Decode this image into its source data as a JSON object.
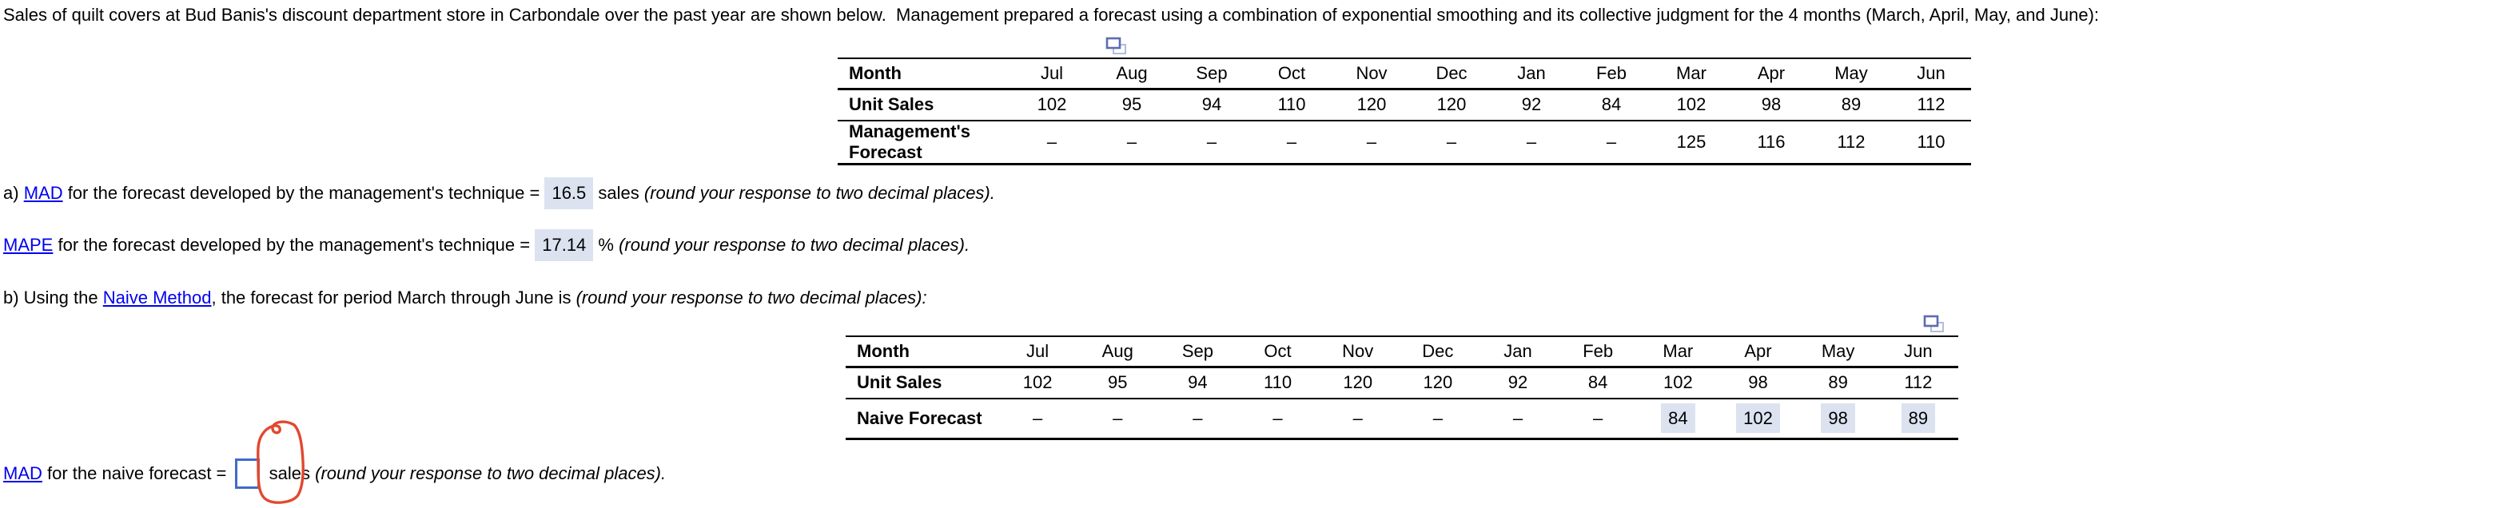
{
  "colors": {
    "highlight": "#dce2f0",
    "link": "#0000ee",
    "input_border": "#3f6cc7",
    "annotation": "#e2482e",
    "icon_dark": "#5c6cb0",
    "icon_light": "#b3bcdf",
    "table_border": "#000000"
  },
  "intro": "Sales of quilt covers at Bud Banis's discount department store in Carbondale over the past year are shown below.  Management prepared a forecast using a combination of exponential smoothing and its collective judgment for the 4 months (March, April, May, and June):",
  "months": [
    "Jul",
    "Aug",
    "Sep",
    "Oct",
    "Nov",
    "Dec",
    "Jan",
    "Feb",
    "Mar",
    "Apr",
    "May",
    "Jun"
  ],
  "table1": {
    "row_headers": [
      "Month",
      "Unit Sales",
      "Management's Forecast"
    ],
    "unit_sales": [
      "102",
      "95",
      "94",
      "110",
      "120",
      "120",
      "92",
      "84",
      "102",
      "98",
      "89",
      "112"
    ],
    "forecast": [
      "–",
      "–",
      "–",
      "–",
      "–",
      "–",
      "–",
      "–",
      "125",
      "116",
      "112",
      "110"
    ],
    "highlight_start": null
  },
  "table2": {
    "row_headers": [
      "Month",
      "Unit Sales",
      "Naive Forecast"
    ],
    "unit_sales": [
      "102",
      "95",
      "94",
      "110",
      "120",
      "120",
      "92",
      "84",
      "102",
      "98",
      "89",
      "112"
    ],
    "forecast": [
      "–",
      "–",
      "–",
      "–",
      "–",
      "–",
      "–",
      "–",
      "84",
      "102",
      "98",
      "89"
    ],
    "highlight_start": 8
  },
  "part_a": {
    "prefix": "a) ",
    "link": "MAD",
    "middle": " for the forecast developed by the management's technique = ",
    "value": "16.5",
    "after": " sales ",
    "note": "(round your response to two decimal places)."
  },
  "mape": {
    "link": "MAPE",
    "middle": " for the forecast developed by the management's technique = ",
    "value": "17.14",
    "after": " % ",
    "note": "(round your response to two decimal places)."
  },
  "part_b": {
    "prefix": "b) Using the ",
    "link": "Naive Method",
    "after": ", the forecast for period March through June is ",
    "note": "(round your response to two decimal places):"
  },
  "mad_naive": {
    "link": "MAD",
    "middle": " for the naive forecast = ",
    "input_value": "",
    "after": " sales ",
    "note": "(round your response to two decimal places)."
  }
}
